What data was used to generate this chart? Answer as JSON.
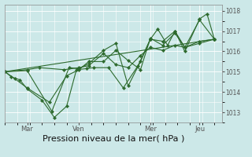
{
  "xlabel": "Pression niveau de la mer( hPa )",
  "bg_color": "#cce8e8",
  "line_color": "#2d6a2d",
  "grid_color": "#ffffff",
  "ylim": [
    1012.5,
    1018.3
  ],
  "xlim": [
    0.0,
    8.8
  ],
  "yticks": [
    1013,
    1014,
    1015,
    1016,
    1017,
    1018
  ],
  "xtick_positions": [
    0.9,
    3.0,
    5.9,
    7.9
  ],
  "xtick_labels": [
    "Mar",
    "Ven",
    "Mer",
    "Jeu"
  ],
  "series": [
    [
      0,
      1015.0,
      0.25,
      1014.75,
      0.6,
      1014.6,
      0.9,
      1014.15,
      1.5,
      1013.6,
      2.0,
      1012.75,
      2.5,
      1013.3,
      2.9,
      1015.1,
      3.3,
      1015.15,
      3.6,
      1015.2,
      4.2,
      1015.2,
      4.8,
      1014.2,
      5.4,
      1015.3,
      5.9,
      1016.6,
      6.2,
      1017.1,
      6.6,
      1016.3,
      6.9,
      1017.0,
      7.3,
      1016.0,
      7.9,
      1017.6,
      8.2,
      1017.85,
      8.5,
      1016.6
    ],
    [
      0,
      1015.0,
      0.4,
      1014.65,
      0.9,
      1014.2,
      1.8,
      1013.5,
      2.5,
      1014.8,
      3.0,
      1015.1,
      3.4,
      1015.5,
      4.0,
      1015.5,
      4.5,
      1016.05,
      5.0,
      1015.55,
      5.5,
      1015.1,
      5.9,
      1016.65,
      6.4,
      1016.3,
      6.9,
      1016.9,
      7.3,
      1016.2,
      7.9,
      1016.4,
      8.5,
      1016.6
    ],
    [
      0,
      1015.0,
      0.9,
      1015.05,
      1.9,
      1013.05,
      2.6,
      1015.2,
      3.0,
      1015.15,
      3.4,
      1015.4,
      4.0,
      1016.05,
      4.5,
      1016.4,
      5.0,
      1014.3,
      5.5,
      1015.5,
      5.9,
      1016.6,
      6.4,
      1016.5,
      6.9,
      1017.0,
      7.3,
      1016.2,
      7.9,
      1017.55,
      8.5,
      1016.6
    ],
    [
      0,
      1015.0,
      0.9,
      1015.1,
      1.4,
      1015.2,
      2.4,
      1015.1,
      3.0,
      1015.2,
      3.4,
      1015.3,
      4.0,
      1015.9,
      4.5,
      1015.35,
      5.0,
      1015.2,
      5.5,
      1015.8,
      5.9,
      1016.2,
      6.4,
      1016.05,
      6.9,
      1016.3,
      7.3,
      1016.2,
      7.9,
      1016.5,
      8.5,
      1016.6
    ],
    [
      0,
      1015.0,
      8.5,
      1016.6
    ]
  ]
}
